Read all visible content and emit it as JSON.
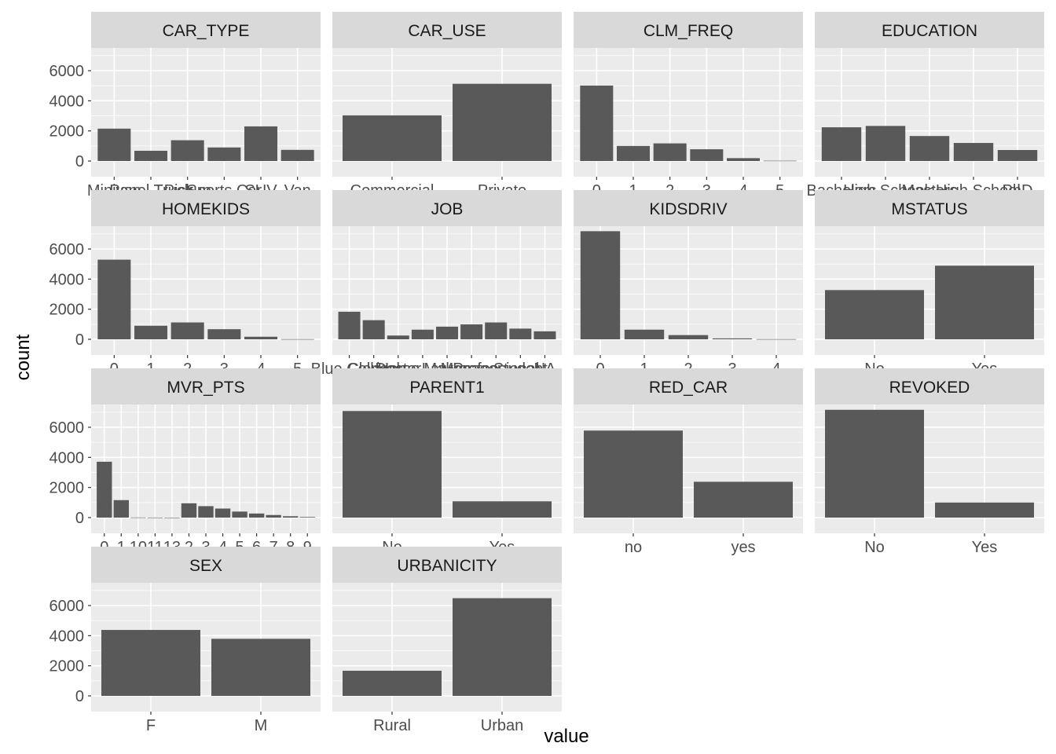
{
  "chart_data": {
    "type": "bar",
    "xlabel": "value",
    "ylabel": "count",
    "ylim": [
      0,
      7500
    ],
    "y_ticks": [
      0,
      2000,
      4000,
      6000
    ],
    "grid": true,
    "colors": {
      "panel_bg": "#ebebeb",
      "strip_bg": "#d9d9d9",
      "bar": "#595959",
      "grid": "#ffffff"
    },
    "panels": [
      {
        "name": "CAR_TYPE",
        "categories": [
          "Minivan",
          "Panel Truck",
          "Pickup",
          "Sports Car",
          "SUV",
          "Van"
        ],
        "values": [
          2150,
          680,
          1380,
          900,
          2300,
          740
        ]
      },
      {
        "name": "CAR_USE",
        "categories": [
          "Commercial",
          "Private"
        ],
        "values": [
          3030,
          5130
        ]
      },
      {
        "name": "CLM_FREQ",
        "categories": [
          "0",
          "1",
          "2",
          "3",
          "4",
          "5"
        ],
        "values": [
          5010,
          1000,
          1170,
          780,
          190,
          20
        ]
      },
      {
        "name": "EDUCATION",
        "categories": [
          "Bachelors",
          "High School",
          "Masters",
          "<High School",
          "PhD"
        ],
        "values": [
          2240,
          2330,
          1660,
          1200,
          730
        ]
      },
      {
        "name": "HOMEKIDS",
        "categories": [
          "0",
          "1",
          "2",
          "3",
          "4",
          "5"
        ],
        "values": [
          5290,
          900,
          1120,
          670,
          170,
          10
        ]
      },
      {
        "name": "JOB",
        "categories": [
          "Blue Collar",
          "Clerical",
          "Doctor",
          "Home Maker",
          "Lawyer",
          "Manager",
          "Professional",
          "Student",
          "NA"
        ],
        "values": [
          1830,
          1270,
          250,
          640,
          840,
          990,
          1120,
          710,
          530
        ]
      },
      {
        "name": "KIDSDRIV",
        "categories": [
          "0",
          "1",
          "2",
          "3",
          "4"
        ],
        "values": [
          7180,
          640,
          280,
          60,
          10
        ]
      },
      {
        "name": "MSTATUS",
        "categories": [
          "No",
          "Yes"
        ],
        "values": [
          3270,
          4890
        ]
      },
      {
        "name": "MVR_PTS",
        "categories": [
          "0",
          "1",
          "10",
          "11",
          "13",
          "2",
          "3",
          "4",
          "5",
          "6",
          "7",
          "8",
          "9"
        ],
        "values": [
          3710,
          1160,
          10,
          5,
          3,
          950,
          760,
          600,
          400,
          270,
          170,
          90,
          40
        ]
      },
      {
        "name": "PARENT1",
        "categories": [
          "No",
          "Yes"
        ],
        "values": [
          7080,
          1080
        ]
      },
      {
        "name": "RED_CAR",
        "categories": [
          "no",
          "yes"
        ],
        "values": [
          5780,
          2380
        ]
      },
      {
        "name": "REVOKED",
        "categories": [
          "No",
          "Yes"
        ],
        "values": [
          7160,
          1000
        ]
      },
      {
        "name": "SEX",
        "categories": [
          "F",
          "M"
        ],
        "values": [
          4380,
          3790
        ]
      },
      {
        "name": "URBANICITY",
        "categories": [
          "Rural",
          "Urban"
        ],
        "values": [
          1670,
          6490
        ]
      }
    ]
  }
}
